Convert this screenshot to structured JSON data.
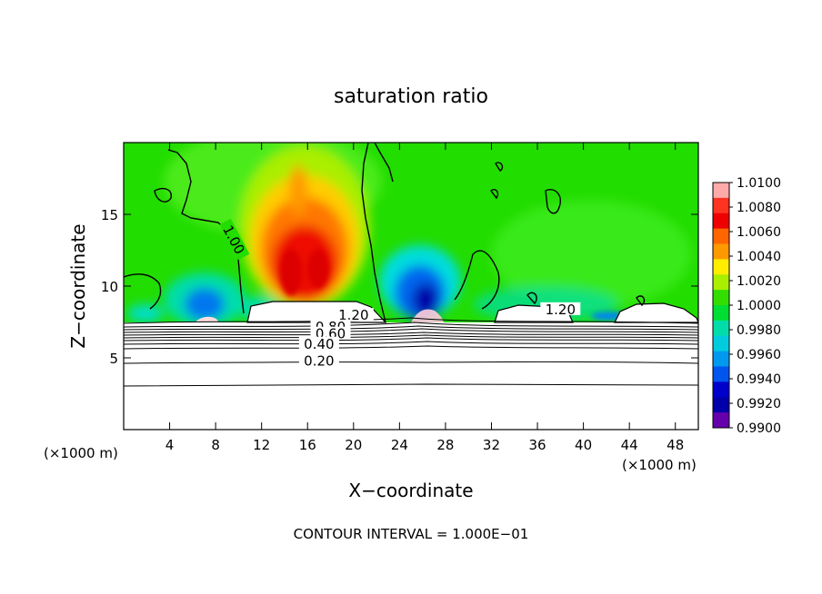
{
  "chart_data": {
    "type": "heatmap",
    "title": "saturation ratio",
    "xlabel": "X−coordinate",
    "ylabel": "Z−coordinate",
    "x_unit_left": "(×1000 m)",
    "x_unit_right": "(×1000 m)",
    "xlim": [
      0,
      50
    ],
    "ylim": [
      0,
      20
    ],
    "x_ticks": [
      4,
      8,
      12,
      16,
      20,
      24,
      28,
      32,
      36,
      40,
      44,
      48
    ],
    "y_ticks": [
      5,
      10,
      15
    ],
    "colorbar": {
      "min": 0.99,
      "max": 1.01,
      "labels": [
        "1.0100",
        "1.0080",
        "1.0060",
        "1.0040",
        "1.0020",
        "1.0000",
        "0.9980",
        "0.9960",
        "0.9940",
        "0.9920",
        "0.9900"
      ],
      "colors": [
        "#ffaaaa",
        "#ff3322",
        "#ee0000",
        "#ff6600",
        "#ff9900",
        "#ffee00",
        "#aaee00",
        "#33dd00",
        "#00dd33",
        "#00ddaa",
        "#00ccdd",
        "#0099ee",
        "#0055ee",
        "#0000cc",
        "#0000aa",
        "#6600aa"
      ]
    },
    "contours": [
      {
        "label": "1.20",
        "x": 20,
        "z": 7.9
      },
      {
        "label": "0.80",
        "x": 18,
        "z": 7.1
      },
      {
        "label": "0.60",
        "x": 18,
        "z": 6.6
      },
      {
        "label": "0.40",
        "x": 17,
        "z": 5.9
      },
      {
        "label": "0.20",
        "x": 17,
        "z": 4.7
      },
      {
        "label": "1.00",
        "x": 9.5,
        "z": 13.2
      },
      {
        "label": "1.20",
        "x": 38,
        "z": 8.3
      }
    ],
    "contour_interval_text": "CONTOUR INTERVAL = 1.000E−01"
  }
}
